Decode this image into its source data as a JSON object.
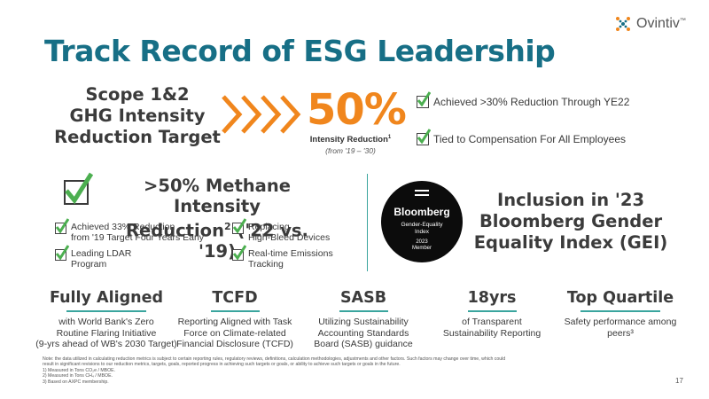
{
  "logo": {
    "text": "Ovintiv",
    "tm": "™"
  },
  "title": "Track Record of ESG Leadership",
  "scope": {
    "line1": "Scope 1&2",
    "line2": "GHG Intensity",
    "line3": "Reduction Target"
  },
  "target": {
    "value": "50%",
    "label": "Intensity Reduction",
    "label_sup": "1",
    "sub": "(from '19 – '30)"
  },
  "checks_top": [
    "Achieved >30% Reduction Through YE22",
    "Tied to Compensation For All Employees"
  ],
  "methane": {
    "line1": ">50% Methane Intensity",
    "line2": "Reduction",
    "line2_sup": "2",
    "line2_rest": " ('22 vs. '19)",
    "items": [
      {
        "line1": "Achieved 33% Reduction",
        "line2": "from '19 Target Four Years Early"
      },
      {
        "line1": "Replacing",
        "line2": "High-Bleed Devices"
      },
      {
        "line1": "Leading LDAR",
        "line2": "Program"
      },
      {
        "line1": "Real-time Emissions",
        "line2": "Tracking"
      }
    ]
  },
  "bloomberg": {
    "brand": "Bloomberg",
    "sub1": "Gender-Equality",
    "sub2": "Index",
    "year": "2023",
    "member": "Member"
  },
  "gei": {
    "line1": "Inclusion in '23",
    "line2": "Bloomberg Gender",
    "line3": "Equality Index (GEI)"
  },
  "columns": [
    {
      "heading": "Fully Aligned",
      "lines": [
        "with World Bank's Zero",
        "Routine Flaring Initiative",
        "(9-yrs ahead of WB's 2030 Target)"
      ]
    },
    {
      "heading": "TCFD",
      "lines": [
        "Reporting Aligned with Task",
        "Force on Climate-related",
        "Financial Disclosure (TCFD)"
      ]
    },
    {
      "heading": "SASB",
      "lines": [
        "Utilizing Sustainability",
        "Accounting Standards",
        "Board (SASB) guidance"
      ]
    },
    {
      "heading": "18yrs",
      "lines": [
        "of Transparent",
        "Sustainability Reporting"
      ]
    },
    {
      "heading": "Top Quartile",
      "lines": [
        "Safety performance among",
        "peers³"
      ]
    }
  ],
  "footnotes": [
    "Note: the data utilized in calculating reduction metrics is subject to certain reporting rules, regulatory reviews, definitions, calculation methodologies, adjustments and other factors. Such factors may change over time, which could",
    "result in significant revisions to our reduction metrics, targets, goals, reported progress in achieving such targets or goals, or ability to achieve such targets or goals in the future.",
    "1) Measured in Tons CO₂e / MBOE.",
    "2) Measured in Tons CH₄ / MBOE.",
    "3) Based on AXPC membership."
  ],
  "page_number": "17",
  "colors": {
    "teal": "#176f86",
    "orange": "#f0861d",
    "green": "#3aa59e",
    "check_green": "#4caf50"
  }
}
